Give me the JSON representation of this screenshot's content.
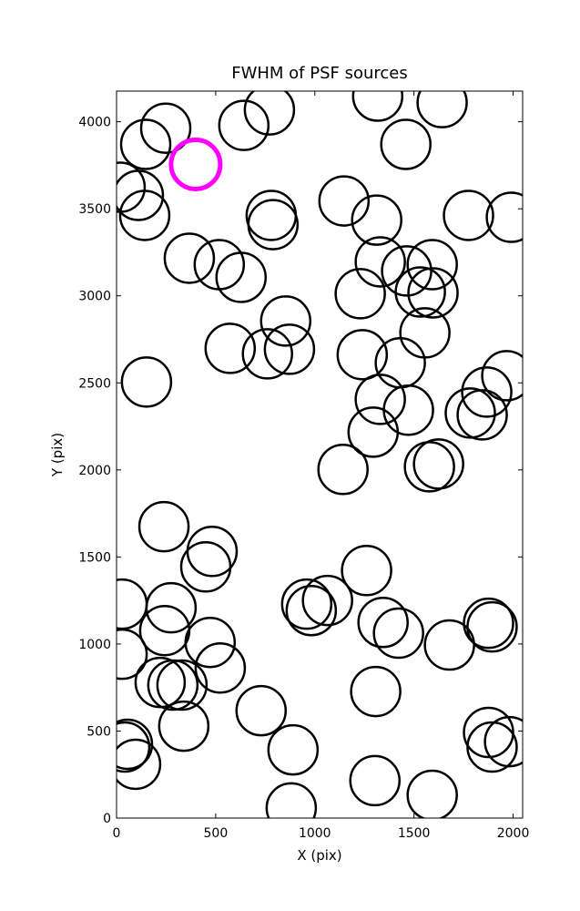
{
  "chart_data": {
    "type": "scatter",
    "title": "FWHM of PSF sources",
    "xlabel": "X (pix)",
    "ylabel": "Y (pix)",
    "xlim": [
      0,
      2048
    ],
    "ylim": [
      0,
      4176
    ],
    "xticks": [
      0,
      500,
      1000,
      1500,
      2000
    ],
    "yticks": [
      0,
      500,
      1000,
      1500,
      2000,
      2500,
      3000,
      3500,
      4000
    ],
    "series": [
      {
        "color": "#000000",
        "x": [
          147,
          248,
          642,
          771,
          1317,
          1642,
          1459,
          18,
          110,
          142,
          780,
          789,
          1147,
          1312,
          1775,
          1991,
          367,
          518,
          628,
          1330,
          1463,
          1592,
          1532,
          1596,
          1229,
          853,
          573,
          761,
          872,
          1239,
          1431,
          1555,
          151,
          1330,
          1472,
          1294,
          1968,
          1867,
          1784,
          1844,
          1142,
          1578,
          1624,
          239,
          482,
          450,
          1261,
          28,
          275,
          243,
          959,
          982,
          1064,
          1344,
          1422,
          1679,
          1876,
          1894,
          472,
          523,
          28,
          220,
          284,
          330,
          1307,
          729,
          339,
          41,
          55,
          96,
          890,
          1876,
          1894,
          1982,
          1303,
          1592,
          881
        ],
        "values": [
          3870,
          3963,
          3979,
          4068,
          4147,
          4110,
          3870,
          3624,
          3577,
          3462,
          3462,
          3409,
          3545,
          3435,
          3462,
          3451,
          3216,
          3179,
          3106,
          3195,
          3143,
          3179,
          3022,
          3017,
          3012,
          2855,
          2698,
          2667,
          2693,
          2662,
          2615,
          2787,
          2505,
          2405,
          2343,
          2217,
          2541,
          2447,
          2327,
          2316,
          2003,
          2018,
          2034,
          1674,
          1532,
          1443,
          1422,
          1229,
          1208,
          1077,
          1229,
          1192,
          1250,
          1124,
          1062,
          994,
          1119,
          1098,
          1009,
          862,
          941,
          779,
          764,
          764,
          727,
          617,
          528,
          408,
          424,
          309,
          392,
          492,
          408,
          439,
          215,
          131,
          58
        ]
      },
      {
        "color": "#ff00ff",
        "x": [
          399
        ],
        "values": [
          3755
        ]
      }
    ]
  }
}
